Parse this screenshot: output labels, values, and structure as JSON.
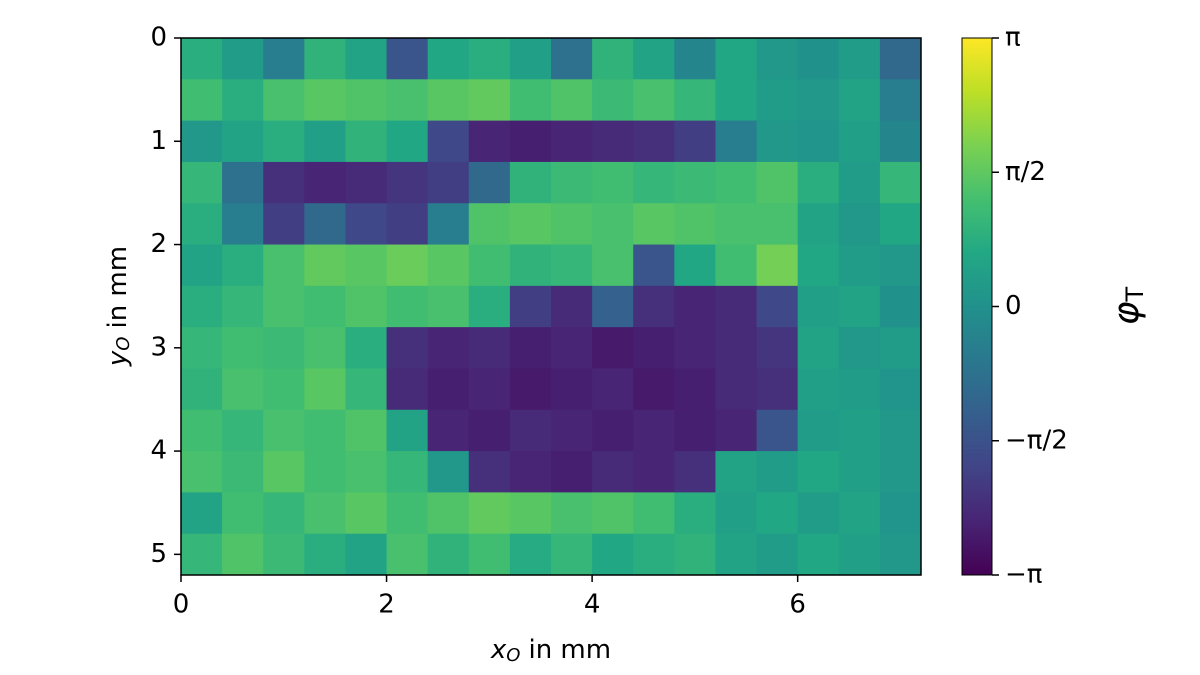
{
  "chart_data": {
    "type": "heatmap",
    "colormap": "viridis",
    "xlabel": {
      "symbol": "x",
      "subscript": "O",
      "text": "in mm"
    },
    "ylabel": {
      "symbol": "y",
      "subscript": "O",
      "text": "in mm"
    },
    "colorbar_label": {
      "symbol": "φ",
      "subscript": "T"
    },
    "xlim": [
      0,
      7.2
    ],
    "xticks": [
      0,
      2,
      4,
      6
    ],
    "ylim": [
      5.2,
      0
    ],
    "yticks": [
      0,
      1,
      2,
      3,
      4,
      5
    ],
    "clim": [
      -3.1416,
      3.1416
    ],
    "cticks": [
      {
        "value": -3.1416,
        "label": "−π"
      },
      {
        "value": -1.5708,
        "label": "−π/2"
      },
      0,
      {
        "value": 1.5708,
        "label": "π/2"
      },
      {
        "value": 3.1416,
        "label": "π"
      }
    ],
    "z": [
      [
        0.8,
        0.3,
        -0.5,
        0.9,
        0.5,
        -1.5,
        0.6,
        0.8,
        0.4,
        -0.8,
        0.9,
        0.5,
        -0.3,
        0.6,
        0.2,
        0.0,
        0.3,
        -1.0
      ],
      [
        1.2,
        0.8,
        1.3,
        1.5,
        1.4,
        1.3,
        1.5,
        1.6,
        1.2,
        1.4,
        1.1,
        1.3,
        1.0,
        0.6,
        0.3,
        0.2,
        0.5,
        -0.5
      ],
      [
        0.2,
        0.5,
        0.8,
        0.4,
        0.9,
        0.6,
        -1.8,
        -2.5,
        -2.6,
        -2.5,
        -2.4,
        -2.3,
        -2.0,
        -0.5,
        0.2,
        0.1,
        0.4,
        -0.3
      ],
      [
        1.0,
        -0.8,
        -2.3,
        -2.5,
        -2.4,
        -2.2,
        -2.0,
        -1.0,
        0.9,
        1.1,
        1.2,
        1.0,
        1.1,
        1.2,
        1.4,
        0.8,
        0.3,
        1.0
      ],
      [
        0.8,
        -0.5,
        -2.0,
        -1.0,
        -1.8,
        -2.0,
        -0.5,
        1.4,
        1.5,
        1.4,
        1.3,
        1.5,
        1.4,
        1.3,
        1.3,
        0.5,
        0.2,
        0.6
      ],
      [
        0.5,
        0.8,
        1.3,
        1.6,
        1.5,
        1.7,
        1.5,
        1.2,
        0.9,
        1.0,
        1.3,
        -1.5,
        0.6,
        1.2,
        1.8,
        0.6,
        0.3,
        0.2
      ],
      [
        0.8,
        1.0,
        1.3,
        1.2,
        1.4,
        1.2,
        1.3,
        0.8,
        -2.0,
        -2.4,
        -1.2,
        -2.3,
        -2.5,
        -2.4,
        -1.8,
        0.4,
        0.5,
        0.0
      ],
      [
        1.0,
        1.2,
        1.1,
        1.3,
        0.8,
        -2.3,
        -2.5,
        -2.4,
        -2.6,
        -2.5,
        -2.7,
        -2.6,
        -2.5,
        -2.4,
        -2.2,
        0.5,
        0.2,
        0.3
      ],
      [
        0.9,
        1.3,
        1.2,
        1.5,
        1.0,
        -2.4,
        -2.6,
        -2.5,
        -2.7,
        -2.6,
        -2.5,
        -2.7,
        -2.6,
        -2.4,
        -2.3,
        0.4,
        0.3,
        0.1
      ],
      [
        1.2,
        1.0,
        1.3,
        1.2,
        1.4,
        0.5,
        -2.5,
        -2.6,
        -2.4,
        -2.5,
        -2.6,
        -2.5,
        -2.6,
        -2.5,
        -1.5,
        0.3,
        0.4,
        0.2
      ],
      [
        1.3,
        1.1,
        1.5,
        1.2,
        1.3,
        1.0,
        0.2,
        -2.3,
        -2.5,
        -2.6,
        -2.4,
        -2.5,
        -2.3,
        0.5,
        0.3,
        0.6,
        0.4,
        0.2
      ],
      [
        0.5,
        1.2,
        1.0,
        1.3,
        1.5,
        1.2,
        1.4,
        1.6,
        1.5,
        1.3,
        1.4,
        1.2,
        0.8,
        0.4,
        0.6,
        0.3,
        0.5,
        0.1
      ],
      [
        1.0,
        1.4,
        1.1,
        0.8,
        0.5,
        1.3,
        0.9,
        1.2,
        0.7,
        1.0,
        0.6,
        0.8,
        0.9,
        0.5,
        0.3,
        0.6,
        0.4,
        0.2
      ]
    ]
  }
}
